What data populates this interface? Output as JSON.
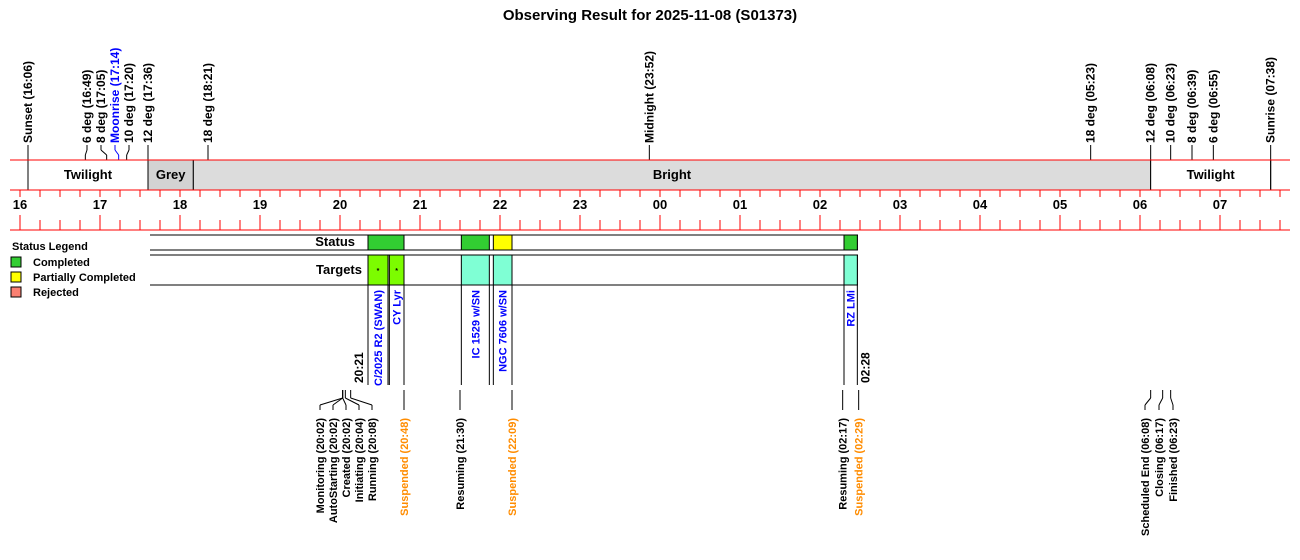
{
  "title": "Observing Result for 2025-11-08 (S01373)",
  "colors": {
    "axis": "#ff0000",
    "grey_band": "#d3d3d3",
    "bright_band": "#dcdcdc",
    "completed": "#32cd32",
    "partially_completed": "#ffff00",
    "rejected": "#fa8072",
    "target_comet": "#7cfc00",
    "target_other": "#7fffd4",
    "target_text": "#0000ff",
    "suspended_text": "#ff8c00",
    "moon_text": "#0000ff"
  },
  "sky_events": [
    {
      "label": "Sunset (16:06)",
      "time": "16:06"
    },
    {
      "label": "6 deg (16:49)",
      "time": "16:49"
    },
    {
      "label": "8 deg (17:05)",
      "time": "17:05"
    },
    {
      "label": "Moonrise (17:14)",
      "time": "17:14",
      "moon": true
    },
    {
      "label": "10 deg (17:20)",
      "time": "17:20"
    },
    {
      "label": "12 deg (17:36)",
      "time": "17:36"
    },
    {
      "label": "18 deg (18:21)",
      "time": "18:21"
    },
    {
      "label": "Midnight (23:52)",
      "time": "23:52"
    },
    {
      "label": "18 deg (05:23)",
      "time": "05:23"
    },
    {
      "label": "12 deg (06:08)",
      "time": "06:08"
    },
    {
      "label": "10 deg (06:23)",
      "time": "06:23"
    },
    {
      "label": "8 deg (06:39)",
      "time": "06:39"
    },
    {
      "label": "6 deg (06:55)",
      "time": "06:55"
    },
    {
      "label": "Sunrise (07:38)",
      "time": "07:38"
    }
  ],
  "bands": [
    {
      "label": "Twilight",
      "start": "16:06",
      "end": "17:36",
      "type": "twilight"
    },
    {
      "label": "Grey",
      "start": "17:36",
      "end": "18:10",
      "type": "grey"
    },
    {
      "label": "Bright",
      "start": "18:10",
      "end": "06:08",
      "type": "bright"
    },
    {
      "label": "Twilight",
      "start": "06:08",
      "end": "07:38",
      "type": "twilight"
    }
  ],
  "hour_labels": [
    "16",
    "17",
    "18",
    "19",
    "20",
    "21",
    "22",
    "23",
    "00",
    "01",
    "02",
    "03",
    "04",
    "05",
    "06",
    "07"
  ],
  "legend": {
    "title": "Status Legend",
    "items": [
      {
        "label": "Completed",
        "color": "#32cd32"
      },
      {
        "label": "Partially Completed",
        "color": "#ffff00"
      },
      {
        "label": "Rejected",
        "color": "#fa8072"
      }
    ]
  },
  "rows": {
    "status": "Status",
    "targets": "Targets"
  },
  "status_segments": [
    {
      "start": "20:21",
      "end": "20:48",
      "status": "completed"
    },
    {
      "start": "21:31",
      "end": "21:52",
      "status": "completed"
    },
    {
      "start": "21:55",
      "end": "22:09",
      "status": "partially_completed"
    },
    {
      "start": "02:18",
      "end": "02:28",
      "status": "completed"
    }
  ],
  "status_range": {
    "start": "20:21",
    "end": "02:28"
  },
  "targets": [
    {
      "name": "C/2025 R2 (SWAN)",
      "start": "20:21",
      "end": "20:36",
      "kind": "comet",
      "mark": "*"
    },
    {
      "name": "CY Lyr",
      "start": "20:37",
      "end": "20:48",
      "kind": "comet",
      "mark": "*"
    },
    {
      "name": "IC 1529 w/SN",
      "start": "21:31",
      "end": "21:52",
      "kind": "other"
    },
    {
      "name": "NGC 7606 w/SN",
      "start": "21:55",
      "end": "22:09",
      "kind": "other"
    },
    {
      "name": "RZ LMi",
      "start": "02:18",
      "end": "02:28",
      "kind": "other"
    }
  ],
  "range_labels": {
    "start": "20:21",
    "end": "02:28"
  },
  "status_events": [
    {
      "label": "Monitoring (20:02)",
      "time": "20:02"
    },
    {
      "label": "AutoStarting (20:02)",
      "time": "20:02"
    },
    {
      "label": "Created (20:02)",
      "time": "20:02"
    },
    {
      "label": "Initiating (20:04)",
      "time": "20:04"
    },
    {
      "label": "Running (20:08)",
      "time": "20:08"
    },
    {
      "label": "Suspended (20:48)",
      "time": "20:48",
      "suspended": true
    },
    {
      "label": "Resuming (21:30)",
      "time": "21:30"
    },
    {
      "label": "Suspended (22:09)",
      "time": "22:09",
      "suspended": true
    },
    {
      "label": "Resuming (02:17)",
      "time": "02:17"
    },
    {
      "label": "Suspended (02:29)",
      "time": "02:29",
      "suspended": true
    },
    {
      "label": "Scheduled End (06:08)",
      "time": "06:08"
    },
    {
      "label": "Closing (06:17)",
      "time": "06:17"
    },
    {
      "label": "Finished (06:23)",
      "time": "06:23"
    }
  ]
}
